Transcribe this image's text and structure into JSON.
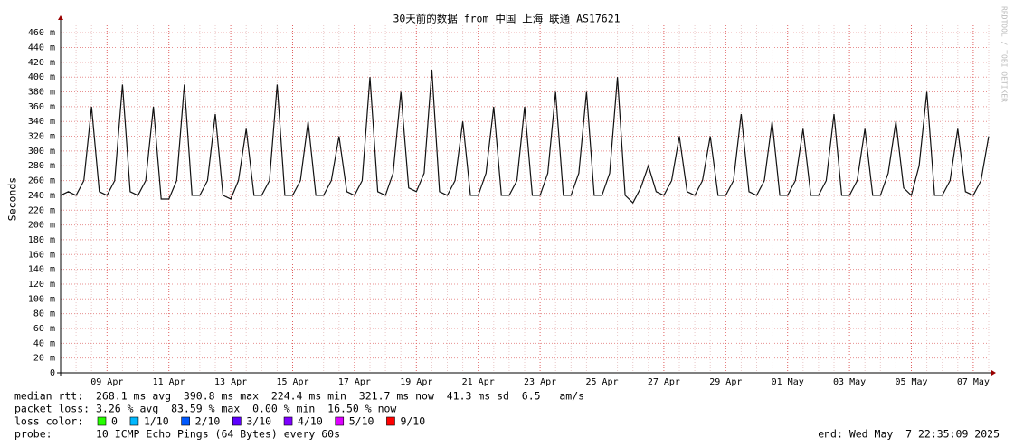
{
  "chart_data": {
    "type": "line",
    "title": "30天前的数据 from 中国 上海 联通 AS17621",
    "y_label": "Seconds",
    "watermark": "RRDTOOL / TOBI OETIKER",
    "categories": [
      null,
      null,
      null,
      null,
      null,
      null,
      "09 Apr",
      null,
      null,
      null,
      null,
      null,
      null,
      null,
      "11 Apr",
      null,
      null,
      null,
      null,
      null,
      null,
      null,
      "13 Apr",
      null,
      null,
      null,
      null,
      null,
      null,
      null,
      "15 Apr",
      null,
      null,
      null,
      null,
      null,
      null,
      null,
      "17 Apr",
      null,
      null,
      null,
      null,
      null,
      null,
      null,
      "19 Apr",
      null,
      null,
      null,
      null,
      null,
      null,
      null,
      "21 Apr",
      null,
      null,
      null,
      null,
      null,
      null,
      null,
      "23 Apr",
      null,
      null,
      null,
      null,
      null,
      null,
      null,
      "25 Apr",
      null,
      null,
      null,
      null,
      null,
      null,
      null,
      "27 Apr",
      null,
      null,
      null,
      null,
      null,
      null,
      null,
      "29 Apr",
      null,
      null,
      null,
      null,
      null,
      null,
      null,
      "01 May",
      null,
      null,
      null,
      null,
      null,
      null,
      null,
      "03 May",
      null,
      null,
      null,
      null,
      null,
      null,
      null,
      "05 May",
      null,
      null,
      null,
      null,
      null,
      null,
      null,
      "07 May",
      null,
      null
    ],
    "series": [
      {
        "name": "median rtt",
        "color": "#111111",
        "values": [
          0.24,
          0.245,
          0.24,
          0.26,
          0.36,
          0.245,
          0.24,
          0.26,
          0.39,
          0.245,
          0.24,
          0.26,
          0.36,
          0.235,
          0.235,
          0.26,
          0.39,
          0.24,
          0.24,
          0.26,
          0.35,
          0.24,
          0.235,
          0.26,
          0.33,
          0.24,
          0.24,
          0.26,
          0.39,
          0.24,
          0.24,
          0.26,
          0.34,
          0.24,
          0.24,
          0.26,
          0.32,
          0.245,
          0.24,
          0.26,
          0.4,
          0.245,
          0.24,
          0.27,
          0.38,
          0.25,
          0.245,
          0.27,
          0.41,
          0.245,
          0.24,
          0.26,
          0.34,
          0.24,
          0.24,
          0.27,
          0.36,
          0.24,
          0.24,
          0.26,
          0.36,
          0.24,
          0.24,
          0.27,
          0.38,
          0.24,
          0.24,
          0.27,
          0.38,
          0.24,
          0.24,
          0.27,
          0.4,
          0.24,
          0.23,
          0.25,
          0.28,
          0.245,
          0.24,
          0.26,
          0.32,
          0.245,
          0.24,
          0.26,
          0.32,
          0.24,
          0.24,
          0.26,
          0.35,
          0.245,
          0.24,
          0.26,
          0.34,
          0.24,
          0.24,
          0.26,
          0.33,
          0.24,
          0.24,
          0.26,
          0.35,
          0.24,
          0.24,
          0.26,
          0.33,
          0.24,
          0.24,
          0.27,
          0.34,
          0.25,
          0.24,
          0.28,
          0.38,
          0.24,
          0.24,
          0.26,
          0.33,
          0.245,
          0.24,
          0.26,
          0.32
        ]
      }
    ],
    "ylim": [
      0,
      0.47
    ],
    "yticks": [
      0,
      {
        "value": 0.02,
        "label": "20 m"
      },
      {
        "value": 0.04,
        "label": "40 m"
      },
      {
        "value": 0.06,
        "label": "60 m"
      },
      {
        "value": 0.08,
        "label": "80 m"
      },
      {
        "value": 0.1,
        "label": "100 m"
      },
      {
        "value": 0.12,
        "label": "120 m"
      },
      {
        "value": 0.14,
        "label": "140 m"
      },
      {
        "value": 0.16,
        "label": "160 m"
      },
      {
        "value": 0.18,
        "label": "180 m"
      },
      {
        "value": 0.2,
        "label": "200 m"
      },
      {
        "value": 0.22,
        "label": "220 m"
      },
      {
        "value": 0.24,
        "label": "240 m"
      },
      {
        "value": 0.26,
        "label": "260 m"
      },
      {
        "value": 0.28,
        "label": "280 m"
      },
      {
        "value": 0.3,
        "label": "300 m"
      },
      {
        "value": 0.32,
        "label": "320 m"
      },
      {
        "value": 0.34,
        "label": "340 m"
      },
      {
        "value": 0.36,
        "label": "360 m"
      },
      {
        "value": 0.38,
        "label": "380 m"
      },
      {
        "value": 0.4,
        "label": "400 m"
      },
      {
        "value": 0.42,
        "label": "420 m"
      },
      {
        "value": 0.44,
        "label": "440 m"
      },
      {
        "value": 0.46,
        "label": "460 m"
      }
    ],
    "grid": true,
    "stats": [
      "median rtt:  268.1 ms avg  390.8 ms max  224.4 ms min  321.7 ms now  41.3 ms sd  6.5   am/s",
      "packet loss: 3.26 % avg  83.59 % max  0.00 % min  16.50 % now"
    ],
    "loss_label": "loss color:",
    "loss_legend": [
      {
        "name": "0",
        "color": "#26ff00"
      },
      {
        "name": "1/10",
        "color": "#00b8ff"
      },
      {
        "name": "2/10",
        "color": "#0059ff"
      },
      {
        "name": "3/10",
        "color": "#5e00ff"
      },
      {
        "name": "4/10",
        "color": "#7e00ff"
      },
      {
        "name": "5/10",
        "color": "#dd00ff"
      },
      {
        "name": "9/10",
        "color": "#ff0000"
      }
    ],
    "probe": "probe:       10 ICMP Echo Pings (64 Bytes) every 60s",
    "end": "end: Wed May  7 22:35:09 2025"
  }
}
